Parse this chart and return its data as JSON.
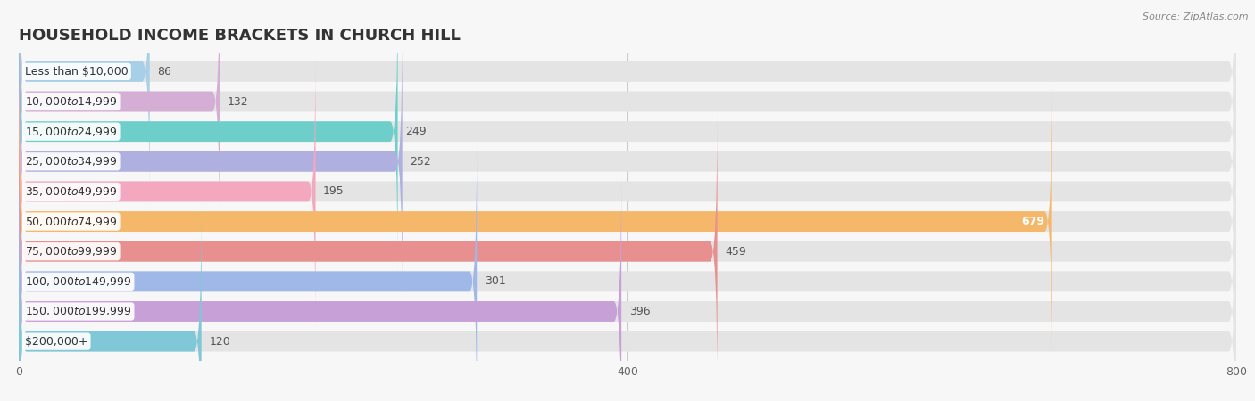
{
  "title": "HOUSEHOLD INCOME BRACKETS IN CHURCH HILL",
  "source": "Source: ZipAtlas.com",
  "categories": [
    "Less than $10,000",
    "$10,000 to $14,999",
    "$15,000 to $24,999",
    "$25,000 to $34,999",
    "$35,000 to $49,999",
    "$50,000 to $74,999",
    "$75,000 to $99,999",
    "$100,000 to $149,999",
    "$150,000 to $199,999",
    "$200,000+"
  ],
  "values": [
    86,
    132,
    249,
    252,
    195,
    679,
    459,
    301,
    396,
    120
  ],
  "bar_colors": [
    "#a8cfe8",
    "#d4aed4",
    "#6ecfca",
    "#b0b0e0",
    "#f4a8c0",
    "#f5b86a",
    "#e89090",
    "#a0b8e8",
    "#c8a0d8",
    "#80c8d8"
  ],
  "label_colors": [
    "#555555",
    "#555555",
    "#555555",
    "#555555",
    "#555555",
    "#ffffff",
    "#555555",
    "#555555",
    "#555555",
    "#555555"
  ],
  "xlim": [
    0,
    800
  ],
  "xticks": [
    0,
    400,
    800
  ],
  "bg_color": "#f7f7f7",
  "bar_bg_color": "#e4e4e4",
  "title_fontsize": 13,
  "label_fontsize": 9,
  "value_fontsize": 9
}
